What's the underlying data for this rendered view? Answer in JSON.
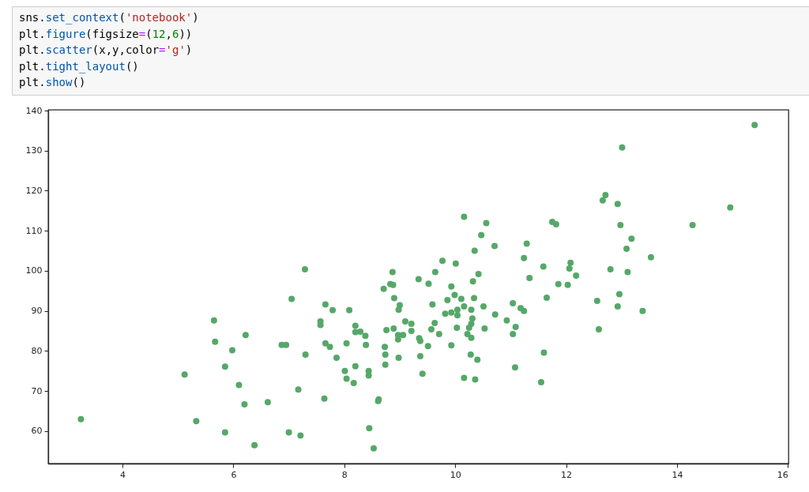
{
  "chart_data": {
    "type": "scatter",
    "annotations": [
      "sns.set_context('notebook')",
      "plt.figure(figsize=(12,6))",
      "plt.scatter(x,y,color='g')",
      "plt.tight_layout()",
      "plt.show()"
    ],
    "series": [
      {
        "color": "#55a868",
        "x": [
          3.25,
          5.12,
          5.33,
          5.65,
          5.67,
          5.85,
          5.85,
          5.98,
          6.1,
          6.22,
          6.2,
          6.38,
          6.62,
          6.87,
          6.95,
          7.0,
          7.05,
          7.17,
          7.21,
          7.29,
          7.3,
          7.66,
          7.79,
          8.09,
          7.57,
          7.57,
          8.2,
          8.2,
          8.29,
          8.38,
          7.66,
          7.74,
          8.04,
          8.39,
          7.86,
          8.01,
          8.04,
          8.2,
          8.17,
          8.44,
          8.44,
          7.64,
          8.62,
          8.61,
          8.45,
          8.53,
          8.71,
          8.83,
          8.88,
          8.9,
          9.0,
          8.98,
          8.76,
          8.89,
          9.1,
          9.21,
          9.21,
          8.97,
          9.06,
          8.97,
          8.73,
          8.74,
          8.74,
          8.98,
          9.35,
          9.37,
          9.51,
          9.37,
          9.41,
          9.34,
          9.52,
          9.59,
          9.63,
          9.57,
          9.71,
          9.93,
          9.86,
          9.99,
          10.11,
          10.16,
          9.82,
          9.93,
          10.04,
          10.04,
          10.03,
          9.93,
          10.32,
          10.34,
          10.29,
          10.31,
          10.29,
          10.25,
          10.22,
          10.29,
          10.28,
          10.4,
          10.16,
          10.36,
          10.51,
          10.53,
          10.72,
          11.04,
          11.18,
          11.24,
          10.93,
          11.09,
          11.04,
          11.08,
          11.34,
          11.6,
          11.55,
          11.65,
          10.16,
          10.56,
          10.47,
          10.35,
          10.71,
          9.77,
          10.01,
          9.64,
          10.42,
          8.87,
          11.24,
          11.29,
          11.59,
          15.4,
          13.01,
          12.71,
          12.66,
          12.93,
          11.75,
          11.82,
          12.98,
          14.28,
          14.96,
          13.18,
          13.09,
          13.53,
          12.08,
          12.06,
          12.18,
          12.8,
          13.11,
          11.86,
          12.03,
          12.56,
          12.96,
          12.93,
          13.38,
          12.59
        ],
        "values": [
          63.0,
          74.1,
          62.5,
          87.6,
          82.3,
          76.1,
          59.7,
          80.2,
          71.5,
          84.0,
          66.7,
          56.5,
          67.2,
          81.5,
          81.5,
          59.7,
          93.0,
          70.4,
          58.9,
          100.4,
          79.1,
          91.6,
          90.2,
          90.2,
          87.4,
          86.5,
          86.3,
          84.7,
          84.8,
          83.8,
          81.9,
          81.0,
          81.9,
          81.5,
          78.3,
          75.0,
          73.1,
          76.2,
          72.0,
          75.0,
          73.9,
          68.1,
          67.9,
          67.5,
          60.7,
          55.7,
          95.5,
          96.7,
          96.5,
          93.2,
          91.4,
          90.3,
          85.2,
          85.6,
          87.4,
          86.8,
          85.0,
          84.0,
          84.0,
          82.9,
          81.0,
          79.1,
          76.6,
          78.3,
          83.2,
          82.5,
          81.2,
          78.7,
          74.3,
          97.9,
          96.8,
          91.6,
          87.0,
          85.4,
          84.2,
          96.1,
          92.7,
          94.0,
          93.0,
          91.1,
          89.3,
          89.6,
          90.3,
          88.9,
          85.8,
          81.4,
          97.4,
          93.2,
          90.3,
          88.1,
          86.8,
          85.8,
          84.2,
          83.3,
          79.1,
          77.8,
          73.3,
          72.9,
          91.1,
          85.6,
          89.1,
          91.9,
          90.7,
          90.0,
          87.6,
          86.0,
          84.2,
          75.9,
          98.2,
          79.6,
          72.2,
          93.3,
          113.5,
          111.9,
          108.9,
          105.0,
          106.2,
          102.5,
          101.8,
          99.7,
          99.2,
          99.7,
          103.2,
          106.8,
          101.1,
          136.4,
          130.8,
          118.9,
          117.6,
          116.7,
          112.2,
          111.6,
          111.4,
          111.4,
          115.8,
          108.0,
          105.5,
          103.4,
          102.0,
          100.6,
          98.8,
          100.4,
          99.7,
          96.7,
          96.5,
          92.5,
          94.2,
          91.1,
          90.0,
          85.4
        ]
      }
    ],
    "xlim": [
      2.66,
      16.01
    ],
    "ylim": [
      51.9,
      140.2
    ],
    "xticks": [
      4,
      6,
      8,
      10,
      12,
      14,
      16
    ],
    "yticks": [
      60,
      70,
      80,
      90,
      100,
      110,
      120,
      130,
      140
    ],
    "marker": "circle"
  }
}
